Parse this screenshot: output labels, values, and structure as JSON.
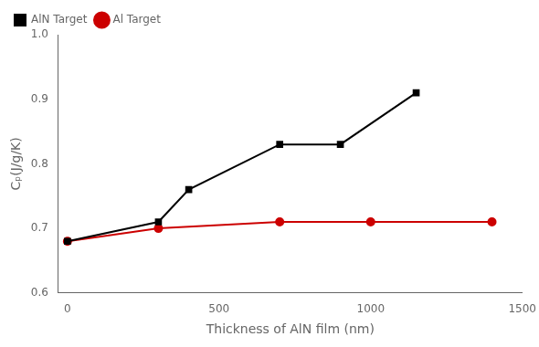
{
  "chart_data": {
    "type": "line",
    "xlabel": "Thickness of AlN film (nm)",
    "ylabel": "Cₚ(J/g/K)",
    "series": [
      {
        "name": "AlN Target",
        "color": "#000000",
        "marker": "square",
        "line_style": "solid",
        "x": [
          0,
          300,
          400,
          700,
          900,
          1150
        ],
        "values": [
          0.68,
          0.71,
          0.76,
          0.83,
          0.83,
          0.91
        ]
      },
      {
        "name": "Al Target",
        "color": "#cc0000",
        "marker": "circle",
        "line_style": "solid",
        "x": [
          0,
          300,
          700,
          1000,
          1400
        ],
        "values": [
          0.68,
          0.7,
          0.71,
          0.71,
          0.71
        ]
      }
    ],
    "xlim": [
      -30,
      1500
    ],
    "ylim": [
      0.6,
      1.0
    ],
    "xticks": [
      0,
      500,
      1000,
      1500
    ],
    "yticks": [
      0.6,
      0.7,
      0.8,
      0.9,
      {
        "value": 1.0,
        "label": "1.0"
      }
    ],
    "grid": false,
    "legend": "upper left"
  }
}
